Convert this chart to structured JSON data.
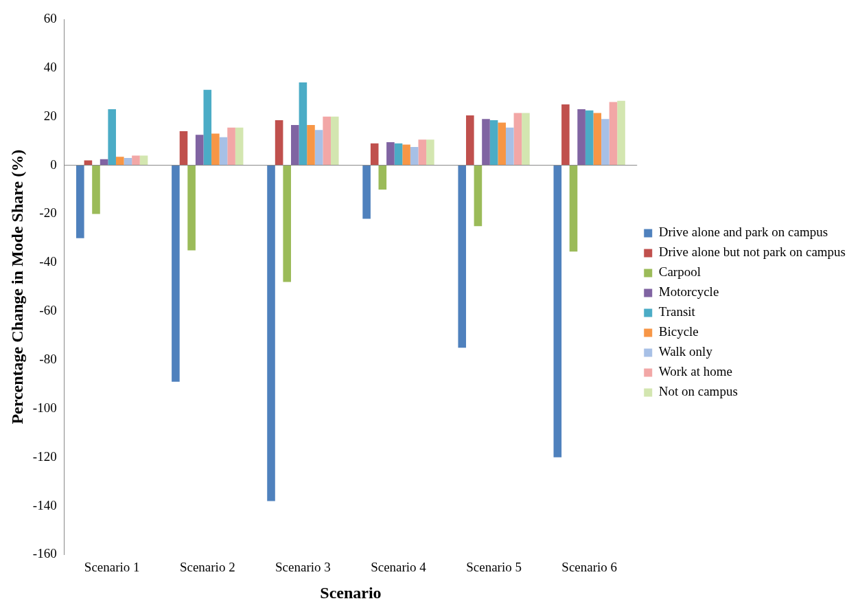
{
  "chart_data": {
    "type": "bar",
    "xlabel": "Scenario",
    "ylabel": "Percentage Change in Mode Share (%)",
    "categories": [
      "Scenario 1",
      "Scenario 2",
      "Scenario 3",
      "Scenario 4",
      "Scenario 5",
      "Scenario 6"
    ],
    "series": [
      {
        "name": "Drive alone and park on campus",
        "color": "#4f81bd",
        "values": [
          -30,
          -89,
          -138,
          -22,
          -75,
          -120
        ]
      },
      {
        "name": "Drive alone but not park on campus",
        "color": "#c0504d",
        "values": [
          2,
          14,
          18.5,
          9,
          20.5,
          25
        ]
      },
      {
        "name": "Carpool",
        "color": "#9bbb59",
        "values": [
          -20,
          -35,
          -48,
          -10,
          -25,
          -35.5
        ]
      },
      {
        "name": "Motorcycle",
        "color": "#8064a2",
        "values": [
          2.5,
          12.5,
          16.5,
          9.5,
          19,
          23
        ]
      },
      {
        "name": "Transit",
        "color": "#4bacc6",
        "values": [
          23,
          31,
          34,
          9,
          18.5,
          22.5
        ]
      },
      {
        "name": "Bicycle",
        "color": "#f79646",
        "values": [
          3.5,
          13,
          16.5,
          8.5,
          17.5,
          21.5
        ]
      },
      {
        "name": "Walk only",
        "color": "#a7c0e6",
        "values": [
          3,
          11.5,
          14.5,
          7.5,
          15.5,
          19
        ]
      },
      {
        "name": "Work at home",
        "color": "#f2a7a6",
        "values": [
          4,
          15.5,
          20,
          10.5,
          21.5,
          26
        ]
      },
      {
        "name": "Not on campus",
        "color": "#d3e6b0",
        "values": [
          4,
          15.5,
          20,
          10.5,
          21.5,
          26.5
        ]
      }
    ],
    "ylim": [
      -160,
      60
    ],
    "yticks": [
      -160,
      -140,
      -120,
      -100,
      -80,
      -60,
      -40,
      -20,
      0,
      20,
      40,
      60
    ],
    "ref_lines": [
      {
        "axis": "y",
        "value": 0,
        "color": "#888888"
      }
    ],
    "grid": false,
    "legend": "right"
  }
}
